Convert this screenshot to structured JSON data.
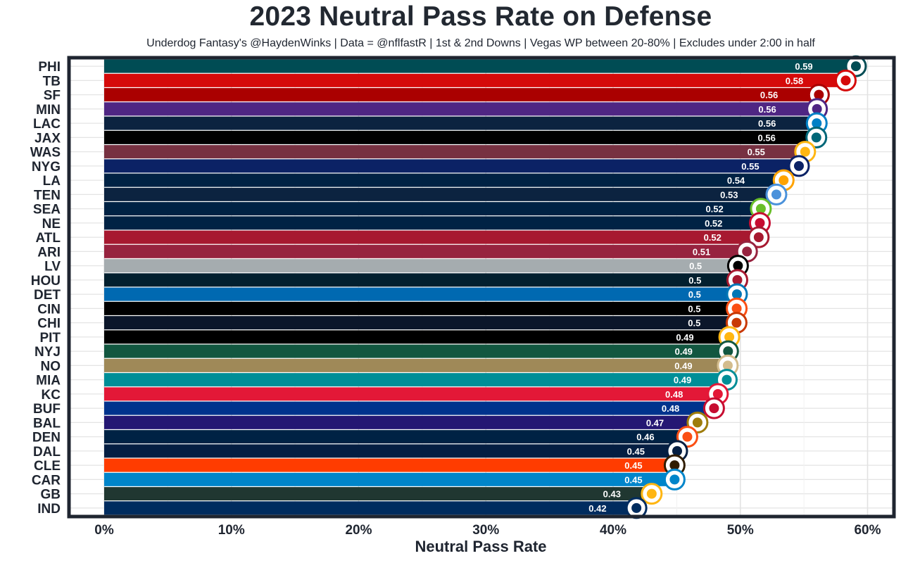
{
  "title": "2023 Neutral Pass Rate on Defense",
  "subtitle": "Underdog Fantasy's @HaydenWinks | Data = @nflfastR | 1st & 2nd Downs | Vegas WP between 20-80% | Excludes under 2:00 in half",
  "chart_data": {
    "type": "bar",
    "orientation": "horizontal",
    "xlabel": "Neutral Pass Rate",
    "ylabel": "",
    "xlim": [
      -0.03,
      0.62
    ],
    "x_ticks": [
      0,
      0.1,
      0.2,
      0.3,
      0.4,
      0.5,
      0.6
    ],
    "x_tick_labels": [
      "0%",
      "10%",
      "20%",
      "30%",
      "40%",
      "50%",
      "60%"
    ],
    "grid": true,
    "categories": [
      "PHI",
      "TB",
      "SF",
      "MIN",
      "LAC",
      "JAX",
      "WAS",
      "NYG",
      "LA",
      "TEN",
      "SEA",
      "NE",
      "ATL",
      "ARI",
      "LV",
      "HOU",
      "DET",
      "CIN",
      "CHI",
      "PIT",
      "NYJ",
      "NO",
      "MIA",
      "KC",
      "BUF",
      "BAL",
      "DEN",
      "DAL",
      "CLE",
      "CAR",
      "GB",
      "IND"
    ],
    "values": [
      0.59,
      0.58,
      0.56,
      0.56,
      0.56,
      0.56,
      0.55,
      0.55,
      0.54,
      0.53,
      0.52,
      0.52,
      0.52,
      0.51,
      0.5,
      0.5,
      0.5,
      0.5,
      0.5,
      0.49,
      0.49,
      0.49,
      0.49,
      0.48,
      0.48,
      0.47,
      0.46,
      0.45,
      0.45,
      0.45,
      0.43,
      0.42
    ],
    "bar_lengths": [
      0.5925,
      0.5845,
      0.5634,
      0.5619,
      0.5617,
      0.5614,
      0.5526,
      0.5477,
      0.5357,
      0.53,
      0.5178,
      0.517,
      0.5161,
      0.5069,
      0.4998,
      0.4993,
      0.499,
      0.4988,
      0.4987,
      0.493,
      0.492,
      0.4918,
      0.491,
      0.484,
      0.481,
      0.468,
      0.46,
      0.452,
      0.45,
      0.45,
      0.432,
      0.42
    ],
    "colors": [
      "#004C54",
      "#D50A0A",
      "#AA0000",
      "#4F2683",
      "#0C2340",
      "#000000",
      "#773141",
      "#0B2265",
      "#002244",
      "#0C2340",
      "#002244",
      "#002244",
      "#A71930",
      "#97233F",
      "#A5ACAF",
      "#03202F",
      "#0069B1",
      "#000000",
      "#0B162A",
      "#000000",
      "#125740",
      "#9F8958",
      "#008E97",
      "#E31837",
      "#00338D",
      "#241773",
      "#002244",
      "#041E42",
      "#FF3C00",
      "#0085CA",
      "#203731",
      "#002C5F"
    ],
    "logo_marks": [
      "eagle",
      "flag",
      "oval",
      "horn",
      "bolt",
      "jaguar",
      "W",
      "NY",
      "horn",
      "T",
      "bird",
      "flag",
      "falcon",
      "cardinal",
      "shield",
      "bull",
      "lion",
      "B",
      "C",
      "steelers",
      "jets",
      "fleur",
      "dolphin",
      "arrowhead",
      "bison",
      "raven",
      "horse",
      "star",
      "helmet",
      "panther",
      "G",
      "horseshoe"
    ],
    "logo_colors": [
      "#004C54",
      "#D50A0A",
      "#AA0000",
      "#4F2683",
      "#0080C6",
      "#006778",
      "#FFB612",
      "#0B2265",
      "#FFA300",
      "#4B92DB",
      "#69BE28",
      "#C60C30",
      "#A71930",
      "#97233F",
      "#000000",
      "#A71930",
      "#0076B6",
      "#FB4F14",
      "#C83803",
      "#FFB612",
      "#125740",
      "#D3BC8D",
      "#008E97",
      "#E31837",
      "#C60C30",
      "#9E7C0C",
      "#FB4F14",
      "#041E42",
      "#311D00",
      "#0085CA",
      "#FFB612",
      "#002C5F"
    ]
  }
}
